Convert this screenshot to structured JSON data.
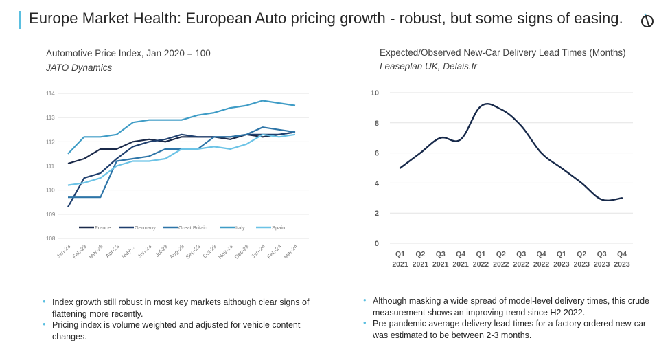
{
  "header": {
    "title": "Europe Market Health: European Auto pricing growth - robust, but some signs of easing.",
    "logo_icon": "circle-slash-logo-icon",
    "accent_color": "#5bbfe0"
  },
  "left_panel": {
    "title": "Automotive Price Index, Jan 2020 = 100",
    "source": "JATO Dynamics",
    "bullets": [
      "Index growth still robust in most key markets although clear signs of flattening more recently.",
      "Pricing index is volume weighted and adjusted for vehicle content changes."
    ]
  },
  "right_panel": {
    "title": "Expected/Observed New-Car Delivery Lead Times (Months)",
    "source": "Leaseplan UK, Delais.fr",
    "bullets": [
      "Although masking a wide spread of model-level delivery times, this crude measurement shows an improving trend since H2 2022.",
      "Pre-pandemic average delivery lead-times for a factory ordered new-car was estimated to be between 2-3 months."
    ]
  },
  "chart_data": [
    {
      "type": "line",
      "title": "Automotive Price Index, Jan 2020 = 100",
      "subtitle": "JATO Dynamics",
      "xlabel": "",
      "ylabel": "",
      "categories": [
        "Jan-23",
        "Feb-23",
        "Mar-23",
        "Apr-23",
        "May-...",
        "Jun-23",
        "Jul-23",
        "Aug-23",
        "Sep-23",
        "Oct-23",
        "Nov-23",
        "Dec-23",
        "Jan-24",
        "Feb-24",
        "Mar-24"
      ],
      "ylim": [
        108,
        114
      ],
      "yticks": [
        108,
        109,
        110,
        111,
        112,
        113,
        114
      ],
      "grid": true,
      "legend": "bottom-inside",
      "series": [
        {
          "name": "France",
          "color": "#1b2a4a",
          "values": [
            111.1,
            111.3,
            111.7,
            111.7,
            112.0,
            112.1,
            112.0,
            112.2,
            112.2,
            112.2,
            112.1,
            112.3,
            112.2,
            112.3,
            112.4
          ]
        },
        {
          "name": "Germany",
          "color": "#1f3f6e",
          "values": [
            109.3,
            110.5,
            110.7,
            111.3,
            111.8,
            112.0,
            112.1,
            112.3,
            112.2,
            112.2,
            112.2,
            112.3,
            112.3,
            112.3,
            112.4
          ]
        },
        {
          "name": "Great Britain",
          "color": "#2e75a8",
          "values": [
            109.7,
            109.7,
            109.7,
            111.2,
            111.3,
            111.4,
            111.7,
            111.7,
            111.7,
            112.2,
            112.2,
            112.3,
            112.6,
            112.5,
            112.4
          ]
        },
        {
          "name": "Italy",
          "color": "#3f9cc6",
          "values": [
            111.5,
            112.2,
            112.2,
            112.3,
            112.8,
            112.9,
            112.9,
            112.9,
            113.1,
            113.2,
            113.4,
            113.5,
            113.7,
            113.6,
            113.5
          ]
        },
        {
          "name": "Spain",
          "color": "#6cc3e6",
          "values": [
            110.2,
            110.3,
            110.5,
            111.0,
            111.2,
            111.2,
            111.3,
            111.7,
            111.7,
            111.8,
            111.7,
            111.9,
            112.3,
            112.2,
            112.3
          ]
        }
      ]
    },
    {
      "type": "line",
      "title": "Expected/Observed New-Car Delivery Lead Times (Months)",
      "subtitle": "Leaseplan UK, Delais.fr",
      "xlabel": "",
      "ylabel": "",
      "categories": [
        [
          "Q1",
          "2021"
        ],
        [
          "Q2",
          "2021"
        ],
        [
          "Q3",
          "2021"
        ],
        [
          "Q4",
          "2021"
        ],
        [
          "Q1",
          "2022"
        ],
        [
          "Q2",
          "2022"
        ],
        [
          "Q3",
          "2022"
        ],
        [
          "Q4",
          "2022"
        ],
        [
          "Q1",
          "2023"
        ],
        [
          "Q2",
          "2023"
        ],
        [
          "Q3",
          "2023"
        ],
        [
          "Q4",
          "2023"
        ]
      ],
      "ylim": [
        0,
        10
      ],
      "yticks": [
        0,
        2,
        4,
        6,
        8,
        10
      ],
      "grid": true,
      "smooth": true,
      "series": [
        {
          "name": "Lead Time (Months)",
          "color": "#17294a",
          "values": [
            5,
            6,
            7,
            6.9,
            9.1,
            8.9,
            7.8,
            6,
            5,
            4,
            2.9,
            3
          ]
        }
      ]
    }
  ]
}
